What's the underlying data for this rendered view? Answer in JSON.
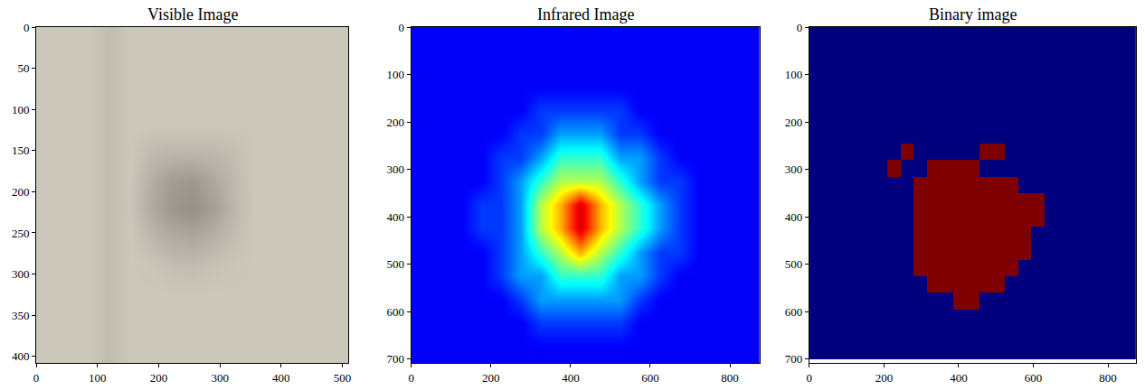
{
  "chart_data": [
    {
      "type": "heatmap",
      "title": "Visible Image",
      "x": [
        17,
        51,
        85,
        119,
        153,
        187,
        221,
        255,
        289,
        323,
        357,
        391,
        425,
        459,
        493
      ],
      "y": [
        17,
        51,
        85,
        119,
        153,
        187,
        221,
        255,
        289,
        323,
        357,
        391
      ],
      "cells": [
        [
          0.85,
          0.85,
          0.85,
          0.79,
          0.85,
          0.85,
          0.85,
          0.85,
          0.85,
          0.85,
          0.85,
          0.85,
          0.85,
          0.85,
          0.85
        ],
        [
          0.85,
          0.85,
          0.85,
          0.79,
          0.85,
          0.85,
          0.85,
          0.85,
          0.85,
          0.85,
          0.85,
          0.85,
          0.85,
          0.85,
          0.85
        ],
        [
          0.85,
          0.85,
          0.85,
          0.79,
          0.85,
          0.85,
          0.85,
          0.85,
          0.85,
          0.85,
          0.85,
          0.85,
          0.85,
          0.85,
          0.85
        ],
        [
          0.85,
          0.85,
          0.85,
          0.79,
          0.85,
          0.85,
          0.85,
          0.85,
          0.85,
          0.85,
          0.85,
          0.85,
          0.85,
          0.85,
          0.85
        ],
        [
          0.85,
          0.85,
          0.85,
          0.79,
          0.85,
          0.78,
          0.76,
          0.76,
          0.77,
          0.8,
          0.85,
          0.85,
          0.85,
          0.85,
          0.85
        ],
        [
          0.85,
          0.85,
          0.85,
          0.79,
          0.85,
          0.72,
          0.62,
          0.6,
          0.68,
          0.78,
          0.85,
          0.85,
          0.85,
          0.85,
          0.85
        ],
        [
          0.85,
          0.85,
          0.85,
          0.79,
          0.84,
          0.7,
          0.6,
          0.55,
          0.64,
          0.77,
          0.85,
          0.85,
          0.85,
          0.85,
          0.85
        ],
        [
          0.85,
          0.85,
          0.85,
          0.79,
          0.85,
          0.77,
          0.7,
          0.68,
          0.73,
          0.8,
          0.85,
          0.85,
          0.85,
          0.85,
          0.85
        ],
        [
          0.85,
          0.85,
          0.85,
          0.79,
          0.85,
          0.84,
          0.8,
          0.79,
          0.82,
          0.84,
          0.85,
          0.85,
          0.85,
          0.85,
          0.85
        ],
        [
          0.85,
          0.85,
          0.85,
          0.79,
          0.85,
          0.85,
          0.85,
          0.85,
          0.85,
          0.85,
          0.85,
          0.85,
          0.85,
          0.85,
          0.85
        ],
        [
          0.85,
          0.85,
          0.85,
          0.79,
          0.85,
          0.85,
          0.85,
          0.85,
          0.85,
          0.85,
          0.85,
          0.85,
          0.85,
          0.85,
          0.85
        ],
        [
          0.85,
          0.85,
          0.85,
          0.79,
          0.85,
          0.85,
          0.85,
          0.85,
          0.85,
          0.85,
          0.85,
          0.85,
          0.85,
          0.85,
          0.85
        ]
      ],
      "zlim": [
        0,
        1
      ],
      "xlim": [
        0,
        510
      ],
      "ylim": [
        408,
        0
      ],
      "xticks": [
        0,
        100,
        200,
        300,
        400,
        500
      ],
      "yticks": [
        0,
        50,
        100,
        150,
        200,
        250,
        300,
        350,
        400
      ]
    },
    {
      "type": "heatmap",
      "title": "Infrared Image",
      "x": [
        25,
        75,
        125,
        175,
        225,
        275,
        325,
        375,
        425,
        475,
        525,
        575,
        625,
        675,
        725,
        775,
        825,
        875
      ],
      "y": [
        25,
        75,
        125,
        175,
        225,
        275,
        325,
        375,
        425,
        475,
        525,
        575,
        625,
        675,
        725
      ],
      "cells": [
        [
          0.12,
          0.12,
          0.12,
          0.12,
          0.12,
          0.12,
          0.12,
          0.12,
          0.12,
          0.12,
          0.12,
          0.12,
          0.12,
          0.12,
          0.12,
          0.12,
          0.12,
          0.12
        ],
        [
          0.12,
          0.12,
          0.12,
          0.12,
          0.12,
          0.12,
          0.12,
          0.12,
          0.12,
          0.12,
          0.12,
          0.12,
          0.12,
          0.12,
          0.12,
          0.12,
          0.12,
          0.12
        ],
        [
          0.12,
          0.12,
          0.12,
          0.12,
          0.12,
          0.12,
          0.12,
          0.12,
          0.12,
          0.12,
          0.12,
          0.12,
          0.12,
          0.12,
          0.12,
          0.12,
          0.12,
          0.12
        ],
        [
          0.12,
          0.12,
          0.12,
          0.12,
          0.12,
          0.12,
          0.18,
          0.18,
          0.18,
          0.18,
          0.18,
          0.12,
          0.12,
          0.12,
          0.12,
          0.12,
          0.12,
          0.12
        ],
        [
          0.12,
          0.12,
          0.12,
          0.12,
          0.12,
          0.18,
          0.18,
          0.28,
          0.28,
          0.28,
          0.18,
          0.18,
          0.12,
          0.12,
          0.12,
          0.12,
          0.12,
          0.12
        ],
        [
          0.12,
          0.12,
          0.12,
          0.12,
          0.18,
          0.18,
          0.28,
          0.42,
          0.42,
          0.42,
          0.28,
          0.28,
          0.18,
          0.12,
          0.12,
          0.12,
          0.12,
          0.12
        ],
        [
          0.12,
          0.12,
          0.12,
          0.12,
          0.18,
          0.28,
          0.42,
          0.55,
          0.55,
          0.55,
          0.42,
          0.28,
          0.18,
          0.18,
          0.12,
          0.12,
          0.12,
          0.12
        ],
        [
          0.12,
          0.12,
          0.12,
          0.18,
          0.18,
          0.28,
          0.55,
          0.7,
          0.92,
          0.7,
          0.55,
          0.42,
          0.28,
          0.18,
          0.12,
          0.12,
          0.12,
          0.12
        ],
        [
          0.12,
          0.12,
          0.12,
          0.18,
          0.18,
          0.28,
          0.55,
          0.7,
          0.92,
          0.7,
          0.55,
          0.42,
          0.28,
          0.18,
          0.12,
          0.12,
          0.12,
          0.12
        ],
        [
          0.12,
          0.12,
          0.12,
          0.12,
          0.18,
          0.28,
          0.42,
          0.55,
          0.7,
          0.55,
          0.42,
          0.28,
          0.18,
          0.18,
          0.12,
          0.12,
          0.12,
          0.12
        ],
        [
          0.12,
          0.12,
          0.12,
          0.12,
          0.18,
          0.28,
          0.28,
          0.42,
          0.42,
          0.42,
          0.28,
          0.28,
          0.18,
          0.12,
          0.12,
          0.12,
          0.12,
          0.12
        ],
        [
          0.12,
          0.12,
          0.12,
          0.12,
          0.12,
          0.18,
          0.28,
          0.28,
          0.28,
          0.28,
          0.28,
          0.18,
          0.12,
          0.12,
          0.12,
          0.12,
          0.12,
          0.12
        ],
        [
          0.12,
          0.12,
          0.12,
          0.12,
          0.12,
          0.12,
          0.18,
          0.18,
          0.18,
          0.18,
          0.18,
          0.12,
          0.12,
          0.12,
          0.12,
          0.12,
          0.12,
          0.12
        ],
        [
          0.12,
          0.12,
          0.12,
          0.12,
          0.12,
          0.12,
          0.12,
          0.12,
          0.12,
          0.12,
          0.12,
          0.12,
          0.12,
          0.12,
          0.12,
          0.12,
          0.12,
          0.12
        ],
        [
          0.12,
          0.12,
          0.12,
          0.12,
          0.12,
          0.12,
          0.12,
          0.12,
          0.12,
          0.12,
          0.12,
          0.12,
          0.12,
          0.12,
          0.12,
          0.12,
          0.12,
          0.12
        ]
      ],
      "zlim": [
        0,
        1
      ],
      "xlim": [
        0,
        875
      ],
      "ylim": [
        708,
        0
      ],
      "xticks": [
        0,
        200,
        400,
        600,
        800
      ],
      "yticks": [
        0,
        100,
        200,
        300,
        400,
        500,
        600,
        700
      ]
    },
    {
      "type": "heatmap",
      "title": "Binary image",
      "x": [
        17.5,
        52.5,
        87.5,
        122.5,
        157.5,
        192.5,
        227.5,
        262.5,
        297.5,
        332.5,
        367.5,
        402.5,
        437.5,
        472.5,
        507.5,
        542.5,
        577.5,
        612.5,
        647.5,
        682.5,
        717.5,
        752.5,
        787.5,
        822.5,
        857.5
      ],
      "y": [
        17.5,
        52.5,
        87.5,
        122.5,
        157.5,
        192.5,
        227.5,
        262.5,
        297.5,
        332.5,
        367.5,
        402.5,
        437.5,
        472.5,
        507.5,
        542.5,
        577.5,
        612.5,
        647.5,
        682.5
      ],
      "cells": [
        [
          0,
          0,
          0,
          0,
          0,
          0,
          0,
          0,
          0,
          0,
          0,
          0,
          0,
          0,
          0,
          0,
          0,
          0,
          0,
          0,
          0,
          0,
          0,
          0,
          0
        ],
        [
          0,
          0,
          0,
          0,
          0,
          0,
          0,
          0,
          0,
          0,
          0,
          0,
          0,
          0,
          0,
          0,
          0,
          0,
          0,
          0,
          0,
          0,
          0,
          0,
          0
        ],
        [
          0,
          0,
          0,
          0,
          0,
          0,
          0,
          0,
          0,
          0,
          0,
          0,
          0,
          0,
          0,
          0,
          0,
          0,
          0,
          0,
          0,
          0,
          0,
          0,
          0
        ],
        [
          0,
          0,
          0,
          0,
          0,
          0,
          0,
          0,
          0,
          0,
          0,
          0,
          0,
          0,
          0,
          0,
          0,
          0,
          0,
          0,
          0,
          0,
          0,
          0,
          0
        ],
        [
          0,
          0,
          0,
          0,
          0,
          0,
          0,
          0,
          0,
          0,
          0,
          0,
          0,
          0,
          0,
          0,
          0,
          0,
          0,
          0,
          0,
          0,
          0,
          0,
          0
        ],
        [
          0,
          0,
          0,
          0,
          0,
          0,
          0,
          0,
          0,
          0,
          0,
          0,
          0,
          0,
          0,
          0,
          0,
          0,
          0,
          0,
          0,
          0,
          0,
          0,
          0
        ],
        [
          0,
          0,
          0,
          0,
          0,
          0,
          0,
          0,
          0,
          0,
          0,
          0,
          0,
          0,
          0,
          0,
          0,
          0,
          0,
          0,
          0,
          0,
          0,
          0,
          0
        ],
        [
          0,
          0,
          0,
          0,
          0,
          0,
          0,
          1,
          0,
          0,
          0,
          0,
          0,
          1,
          1,
          0,
          0,
          0,
          0,
          0,
          0,
          0,
          0,
          0,
          0
        ],
        [
          0,
          0,
          0,
          0,
          0,
          0,
          1,
          0,
          0,
          1,
          1,
          1,
          1,
          0,
          0,
          0,
          0,
          0,
          0,
          0,
          0,
          0,
          0,
          0,
          0
        ],
        [
          0,
          0,
          0,
          0,
          0,
          0,
          0,
          0,
          1,
          1,
          1,
          1,
          1,
          1,
          1,
          1,
          0,
          0,
          0,
          0,
          0,
          0,
          0,
          0,
          0
        ],
        [
          0,
          0,
          0,
          0,
          0,
          0,
          0,
          0,
          1,
          1,
          1,
          1,
          1,
          1,
          1,
          1,
          1,
          1,
          0,
          0,
          0,
          0,
          0,
          0,
          0
        ],
        [
          0,
          0,
          0,
          0,
          0,
          0,
          0,
          0,
          1,
          1,
          1,
          1,
          1,
          1,
          1,
          1,
          1,
          1,
          0,
          0,
          0,
          0,
          0,
          0,
          0
        ],
        [
          0,
          0,
          0,
          0,
          0,
          0,
          0,
          0,
          1,
          1,
          1,
          1,
          1,
          1,
          1,
          1,
          1,
          0,
          0,
          0,
          0,
          0,
          0,
          0,
          0
        ],
        [
          0,
          0,
          0,
          0,
          0,
          0,
          0,
          0,
          1,
          1,
          1,
          1,
          1,
          1,
          1,
          1,
          1,
          0,
          0,
          0,
          0,
          0,
          0,
          0,
          0
        ],
        [
          0,
          0,
          0,
          0,
          0,
          0,
          0,
          0,
          1,
          1,
          1,
          1,
          1,
          1,
          1,
          1,
          0,
          0,
          0,
          0,
          0,
          0,
          0,
          0,
          0
        ],
        [
          0,
          0,
          0,
          0,
          0,
          0,
          0,
          0,
          0,
          1,
          1,
          1,
          1,
          1,
          1,
          0,
          0,
          0,
          0,
          0,
          0,
          0,
          0,
          0,
          0
        ],
        [
          0,
          0,
          0,
          0,
          0,
          0,
          0,
          0,
          0,
          0,
          0,
          1,
          1,
          0,
          0,
          0,
          0,
          0,
          0,
          0,
          0,
          0,
          0,
          0,
          0
        ],
        [
          0,
          0,
          0,
          0,
          0,
          0,
          0,
          0,
          0,
          0,
          0,
          0,
          0,
          0,
          0,
          0,
          0,
          0,
          0,
          0,
          0,
          0,
          0,
          0,
          0
        ],
        [
          0,
          0,
          0,
          0,
          0,
          0,
          0,
          0,
          0,
          0,
          0,
          0,
          0,
          0,
          0,
          0,
          0,
          0,
          0,
          0,
          0,
          0,
          0,
          0,
          0
        ],
        [
          0,
          0,
          0,
          0,
          0,
          0,
          0,
          0,
          0,
          0,
          0,
          0,
          0,
          0,
          0,
          0,
          0,
          0,
          0,
          0,
          0,
          0,
          0,
          0,
          0
        ]
      ],
      "zlim": [
        0,
        1
      ],
      "xlim": [
        0,
        875
      ],
      "ylim": [
        708,
        0
      ],
      "xticks": [
        0,
        200,
        400,
        600,
        800
      ],
      "yticks": [
        0,
        100,
        200,
        300,
        400,
        500,
        600,
        700
      ]
    }
  ]
}
